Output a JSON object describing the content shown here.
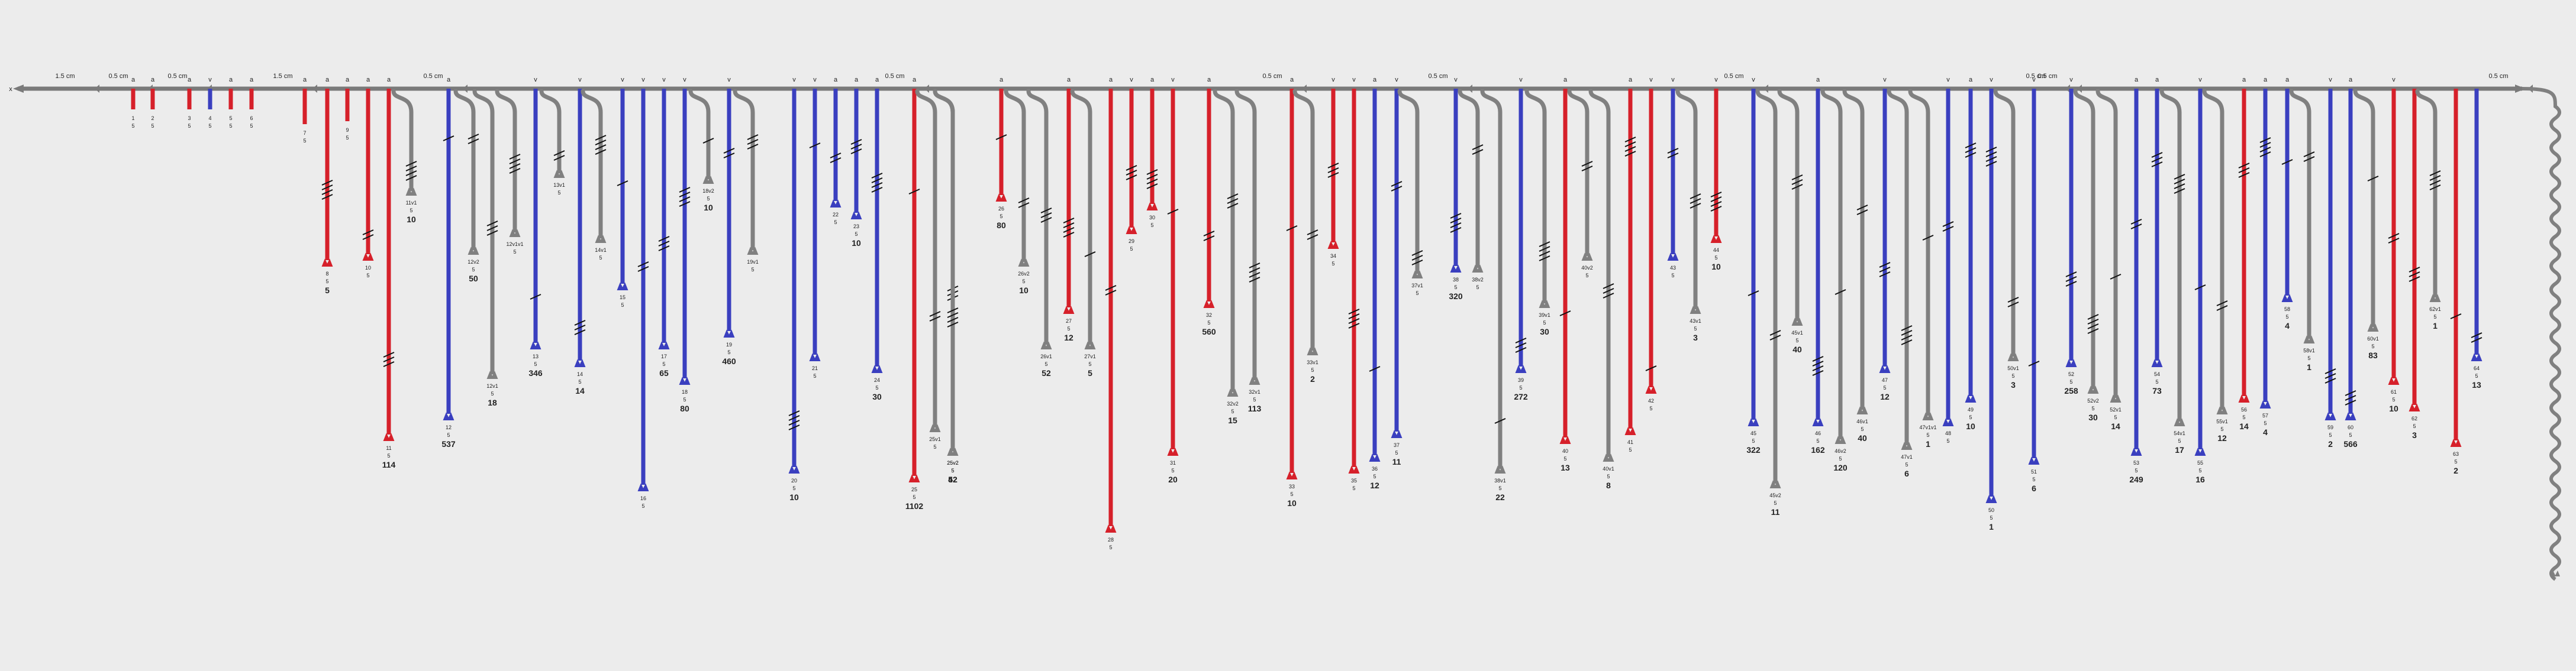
{
  "colors": {
    "background": "#ececec",
    "stem_red": "#d6202a",
    "stem_blue": "#3a3fbf",
    "stem_gray": "#808080",
    "axis": "#7a7a7a"
  },
  "axis_start_label": "x",
  "scale_labels": [
    "1.5 cm",
    "0.5 cm",
    "0.5 cm",
    "1.5 cm",
    "0.5 cm",
    "0.5 cm",
    "0.5 cm",
    "0.5 cm",
    "0.5 cm",
    "0.5 cm",
    "0.5 cm",
    "0.5 cm"
  ],
  "node_marks": [
    "a",
    "a",
    "a",
    "v",
    "a",
    "a",
    "a",
    "a",
    "a",
    "a",
    "a",
    "a",
    "v",
    "v",
    "v",
    "v",
    "v",
    "v",
    "v",
    "v",
    "v",
    "a",
    "a",
    "a",
    "a",
    "a",
    "a",
    "a",
    "v",
    "a",
    "v",
    "a",
    "a",
    "v",
    "v",
    "a",
    "v",
    "v",
    "v",
    "a",
    "a",
    "v",
    "v",
    "v",
    "v",
    "a",
    "v",
    "v",
    "a",
    "v",
    "v",
    "v",
    "a",
    "a",
    "v",
    "a",
    "a",
    "a",
    "v",
    "a",
    "v"
  ],
  "branches": [
    {
      "color": "red",
      "id": "1",
      "sub": "5",
      "count": ""
    },
    {
      "color": "red",
      "id": "2",
      "sub": "5",
      "count": ""
    },
    {
      "color": "red",
      "id": "3",
      "sub": "5",
      "count": ""
    },
    {
      "color": "blue",
      "id": "4",
      "sub": "5",
      "count": ""
    },
    {
      "color": "red",
      "id": "5",
      "sub": "5",
      "count": ""
    },
    {
      "color": "red",
      "id": "6",
      "sub": "5",
      "count": ""
    },
    {
      "color": "red",
      "id": "7",
      "sub": "5",
      "count": ""
    },
    {
      "color": "red",
      "id": "8",
      "sub": "5",
      "count": "5"
    },
    {
      "color": "red",
      "id": "9",
      "sub": "5",
      "count": ""
    },
    {
      "color": "red",
      "id": "10",
      "sub": "5",
      "count": ""
    },
    {
      "color": "red",
      "id": "11",
      "sub": "5",
      "count": "114"
    },
    {
      "color": "gray",
      "id": "11v1",
      "sub": "5",
      "count": "10"
    },
    {
      "color": "blue",
      "id": "12",
      "sub": "5",
      "count": "537"
    },
    {
      "color": "gray",
      "id": "12v2",
      "sub": "5",
      "count": "50"
    },
    {
      "color": "gray",
      "id": "12v1",
      "sub": "5",
      "count": "18"
    },
    {
      "color": "gray",
      "id": "12v1v1",
      "sub": "5",
      "count": ""
    },
    {
      "color": "blue",
      "id": "13",
      "sub": "5",
      "count": "346"
    },
    {
      "color": "gray",
      "id": "13v1",
      "sub": "5",
      "count": ""
    },
    {
      "color": "blue",
      "id": "14",
      "sub": "5",
      "count": "14"
    },
    {
      "color": "gray",
      "id": "14v1",
      "sub": "5",
      "count": ""
    },
    {
      "color": "blue",
      "id": "15",
      "sub": "5",
      "count": ""
    },
    {
      "color": "blue",
      "id": "16",
      "sub": "5",
      "count": ""
    },
    {
      "color": "blue",
      "id": "17",
      "sub": "5",
      "count": "65"
    },
    {
      "color": "blue",
      "id": "18",
      "sub": "5",
      "count": "80"
    },
    {
      "color": "gray",
      "id": "18v2",
      "sub": "5",
      "count": "10"
    },
    {
      "color": "blue",
      "id": "19",
      "sub": "5",
      "count": "460"
    },
    {
      "color": "gray",
      "id": "19v1",
      "sub": "5",
      "count": ""
    },
    {
      "color": "blue",
      "id": "20",
      "sub": "5",
      "count": "10"
    },
    {
      "color": "blue",
      "id": "21",
      "sub": "5",
      "count": ""
    },
    {
      "color": "blue",
      "id": "22",
      "sub": "5",
      "count": ""
    },
    {
      "color": "blue",
      "id": "23",
      "sub": "5",
      "count": "10"
    },
    {
      "color": "blue",
      "id": "24",
      "sub": "5",
      "count": "30"
    },
    {
      "color": "red",
      "id": "25",
      "sub": "5",
      "count": "1102"
    },
    {
      "color": "gray",
      "id": "25v1",
      "sub": "5",
      "count": ""
    },
    {
      "color": "gray",
      "id": "25v2",
      "sub": "5",
      "count": "42"
    },
    {
      "color": "gray",
      "id": "25v2",
      "sub": "5",
      "count": "52"
    },
    {
      "color": "red",
      "id": "26",
      "sub": "5",
      "count": "80"
    },
    {
      "color": "gray",
      "id": "26v2",
      "sub": "5",
      "count": "10"
    },
    {
      "color": "gray",
      "id": "26v1",
      "sub": "5",
      "count": "52"
    },
    {
      "color": "red",
      "id": "27",
      "sub": "5",
      "count": "12"
    },
    {
      "color": "gray",
      "id": "27v1",
      "sub": "5",
      "count": "5"
    },
    {
      "color": "red",
      "id": "28",
      "sub": "5",
      "count": ""
    },
    {
      "color": "red",
      "id": "29",
      "sub": "5",
      "count": ""
    },
    {
      "color": "red",
      "id": "30",
      "sub": "5",
      "count": ""
    },
    {
      "color": "red",
      "id": "31",
      "sub": "5",
      "count": "20"
    },
    {
      "color": "red",
      "id": "32",
      "sub": "5",
      "count": "560"
    },
    {
      "color": "gray",
      "id": "32v2",
      "sub": "5",
      "count": "15"
    },
    {
      "color": "gray",
      "id": "32v1",
      "sub": "5",
      "count": "113"
    },
    {
      "color": "red",
      "id": "33",
      "sub": "5",
      "count": "10"
    },
    {
      "color": "gray",
      "id": "33v1",
      "sub": "5",
      "count": "2"
    },
    {
      "color": "red",
      "id": "34",
      "sub": "5",
      "count": ""
    },
    {
      "color": "red",
      "id": "35",
      "sub": "5",
      "count": ""
    },
    {
      "color": "blue",
      "id": "36",
      "sub": "5",
      "count": "12"
    },
    {
      "color": "blue",
      "id": "37",
      "sub": "5",
      "count": "11"
    },
    {
      "color": "gray",
      "id": "37v1",
      "sub": "5",
      "count": ""
    },
    {
      "color": "blue",
      "id": "38",
      "sub": "5",
      "count": "320"
    },
    {
      "color": "gray",
      "id": "38v1",
      "sub": "5",
      "count": "22"
    },
    {
      "color": "gray",
      "id": "38v2",
      "sub": "5",
      "count": ""
    },
    {
      "color": "blue",
      "id": "39",
      "sub": "5",
      "count": "272"
    },
    {
      "color": "gray",
      "id": "39v1",
      "sub": "5",
      "count": "30"
    },
    {
      "color": "red",
      "id": "40",
      "sub": "5",
      "count": "13"
    },
    {
      "color": "gray",
      "id": "40v2",
      "sub": "5",
      "count": ""
    },
    {
      "color": "gray",
      "id": "40v1",
      "sub": "5",
      "count": "8"
    },
    {
      "color": "red",
      "id": "41",
      "sub": "5",
      "count": ""
    },
    {
      "color": "red",
      "id": "42",
      "sub": "5",
      "count": ""
    },
    {
      "color": "blue",
      "id": "43",
      "sub": "5",
      "count": ""
    },
    {
      "color": "gray",
      "id": "43v1",
      "sub": "5",
      "count": "3"
    },
    {
      "color": "red",
      "id": "44",
      "sub": "5",
      "count": "10"
    },
    {
      "color": "blue",
      "id": "45",
      "sub": "5",
      "count": "322"
    },
    {
      "color": "gray",
      "id": "45v2",
      "sub": "5",
      "count": "11"
    },
    {
      "color": "gray",
      "id": "45v1",
      "sub": "5",
      "count": "40"
    },
    {
      "color": "blue",
      "id": "46",
      "sub": "5",
      "count": "162"
    },
    {
      "color": "gray",
      "id": "46v2",
      "sub": "5",
      "count": "120"
    },
    {
      "color": "gray",
      "id": "46v1",
      "sub": "5",
      "count": "40"
    },
    {
      "color": "blue",
      "id": "47",
      "sub": "5",
      "count": "12"
    },
    {
      "color": "gray",
      "id": "47v1",
      "sub": "5",
      "count": "6"
    },
    {
      "color": "gray",
      "id": "47v1v1",
      "sub": "5",
      "count": "1"
    },
    {
      "color": "blue",
      "id": "48",
      "sub": "5",
      "count": ""
    },
    {
      "color": "blue",
      "id": "49",
      "sub": "5",
      "count": "10"
    },
    {
      "color": "blue",
      "id": "50",
      "sub": "5",
      "count": "1"
    },
    {
      "color": "blue",
      "id": "51",
      "sub": "5",
      "count": "6"
    },
    {
      "color": "gray",
      "id": "50v1",
      "sub": "5",
      "count": "3"
    },
    {
      "color": "blue",
      "id": "52",
      "sub": "5",
      "count": "258"
    },
    {
      "color": "gray",
      "id": "52v2",
      "sub": "5",
      "count": "30"
    },
    {
      "color": "gray",
      "id": "52v1",
      "sub": "5",
      "count": "14"
    },
    {
      "color": "blue",
      "id": "53",
      "sub": "5",
      "count": "249"
    },
    {
      "color": "blue",
      "id": "54",
      "sub": "5",
      "count": "73"
    },
    {
      "color": "gray",
      "id": "54v1",
      "sub": "5",
      "count": "17"
    },
    {
      "color": "blue",
      "id": "55",
      "sub": "5",
      "count": "16"
    },
    {
      "color": "gray",
      "id": "55v1",
      "sub": "5",
      "count": "12"
    },
    {
      "color": "red",
      "id": "56",
      "sub": "5",
      "count": "14"
    },
    {
      "color": "blue",
      "id": "57",
      "sub": "5",
      "count": "4"
    },
    {
      "color": "blue",
      "id": "58",
      "sub": "5",
      "count": "4"
    },
    {
      "color": "gray",
      "id": "58v1",
      "sub": "5",
      "count": "1"
    },
    {
      "color": "blue",
      "id": "59",
      "sub": "5",
      "count": "2"
    },
    {
      "color": "blue",
      "id": "60",
      "sub": "5",
      "count": "566"
    },
    {
      "color": "gray",
      "id": "60v1",
      "sub": "5",
      "count": "83"
    },
    {
      "color": "red",
      "id": "61",
      "sub": "5",
      "count": "10"
    },
    {
      "color": "red",
      "id": "62",
      "sub": "5",
      "count": "3"
    },
    {
      "color": "gray",
      "id": "62v1",
      "sub": "5",
      "count": "1"
    },
    {
      "color": "red",
      "id": "63",
      "sub": "5",
      "count": "2"
    },
    {
      "color": "blue",
      "id": "64",
      "sub": "5",
      "count": "13"
    }
  ]
}
